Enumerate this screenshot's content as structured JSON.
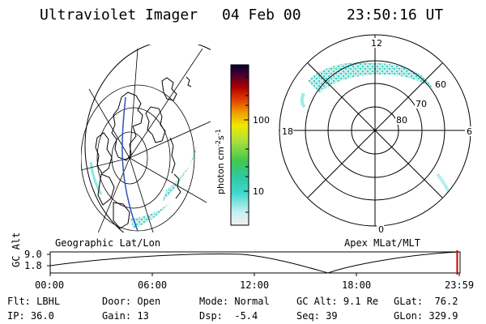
{
  "header": {
    "instrument": "Ultraviolet Imager",
    "date": "04 Feb 00",
    "time": "23:50:16 UT"
  },
  "colorbar": {
    "unit_label": "photon cm",
    "unit_sup1": "-2",
    "unit_mid": "s",
    "unit_sup2": "-1",
    "ticks": [
      "100",
      "10"
    ]
  },
  "left_map": {
    "caption": "Geographic Lat/Lon"
  },
  "polar_plot": {
    "caption": "Apex MLat/MLT",
    "mlt_labels": {
      "top": "12",
      "left": "18",
      "right": "6",
      "bottom": "0"
    },
    "lat_labels": [
      "60",
      "70",
      "80"
    ]
  },
  "timeline": {
    "ylabel": "GC Alt",
    "ytick_top": "9.0",
    "ytick_bottom": "1.8",
    "time_ticks": [
      "00:00",
      "06:00",
      "12:00",
      "18:00",
      "23:59"
    ],
    "current_marker_fraction": 0.993,
    "marker_color": "#cc0000"
  },
  "info": {
    "row1": [
      {
        "label": "Flt:",
        "value": "LBHL"
      },
      {
        "label": "Door:",
        "value": "Open"
      },
      {
        "label": "Mode:",
        "value": "Normal"
      },
      {
        "label": "GC Alt:",
        "value": "9.1 Re"
      },
      {
        "label": "GLat:",
        "value": "76.2"
      }
    ],
    "row2": [
      {
        "label": "IP:",
        "value": "36.0"
      },
      {
        "label": "Gain:",
        "value": "13"
      },
      {
        "label": "Dsp:",
        "value": "  -5.4"
      },
      {
        "label": "Seq:",
        "value": "39"
      },
      {
        "label": "GLon:",
        "value": "329.9"
      }
    ]
  },
  "colors": {
    "colorbar_stops": [
      "#f0f0f0",
      "#a8e8e8",
      "#40d8d0",
      "#30c870",
      "#a0e040",
      "#f0e000",
      "#f0a000",
      "#e03000",
      "#a00000",
      "#400040",
      "#000020"
    ]
  }
}
